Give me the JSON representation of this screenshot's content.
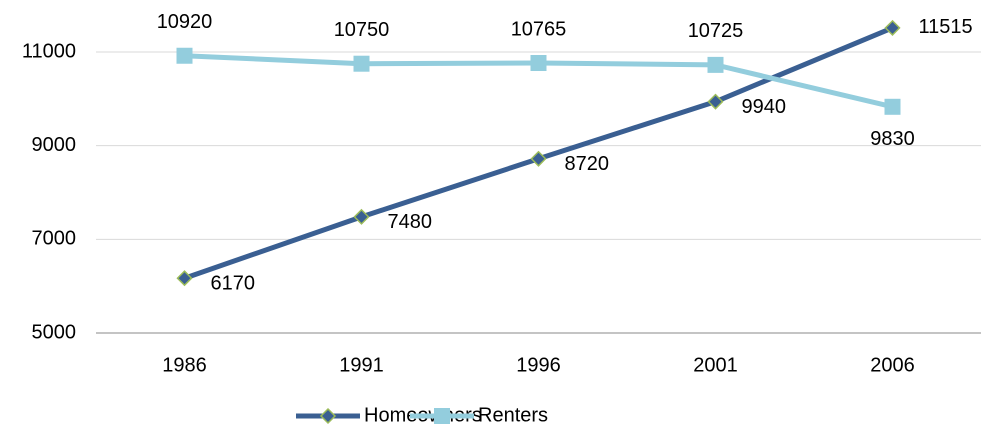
{
  "chart_data": {
    "type": "line",
    "categories": [
      "1986",
      "1991",
      "1996",
      "2001",
      "2006"
    ],
    "series": [
      {
        "name": "Homeowners",
        "color": "#3a5f92",
        "marker": "diamond",
        "values": [
          6170,
          7480,
          8720,
          9940,
          11515
        ]
      },
      {
        "name": "Renters",
        "color": "#93cddd",
        "marker": "square",
        "values": [
          10920,
          10750,
          10765,
          10725,
          9830
        ]
      }
    ],
    "ylim": [
      5000,
      12000
    ],
    "yticks": [
      5000,
      7000,
      9000,
      11000
    ],
    "grid": true,
    "legend": "bottom"
  }
}
